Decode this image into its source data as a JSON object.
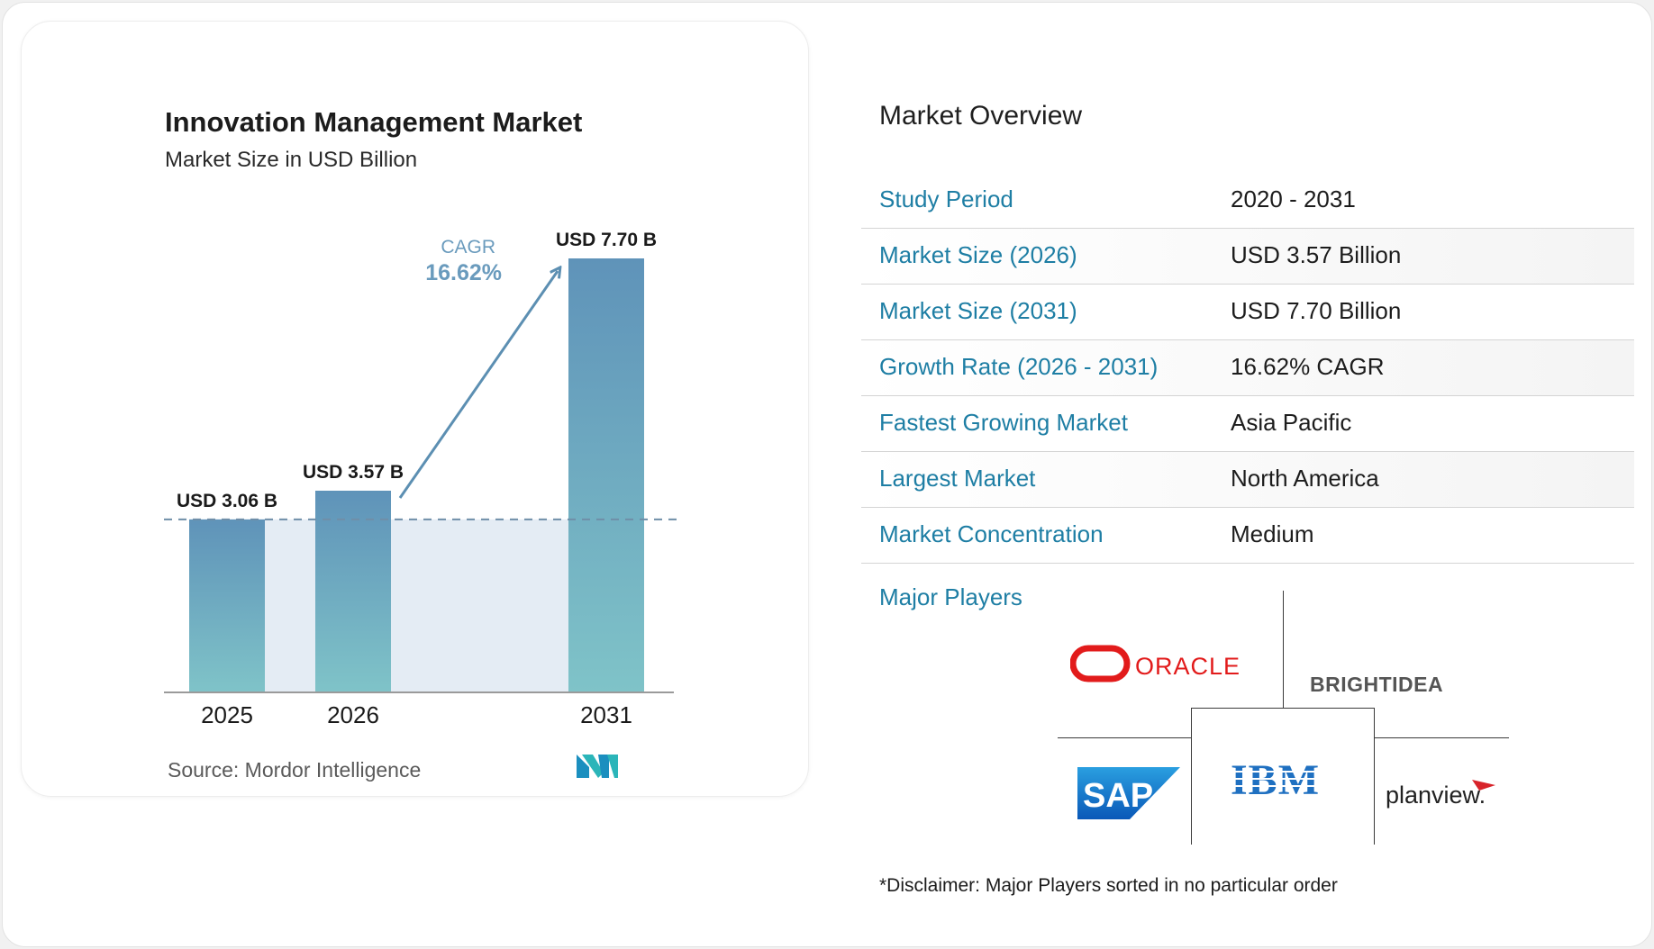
{
  "chart_data": {
    "type": "bar",
    "title": "Innovation Management Market",
    "subtitle": "Market Size in USD Billion",
    "categories": [
      "2025",
      "2026",
      "2031"
    ],
    "values": [
      3.06,
      3.57,
      7.7
    ],
    "data_labels": [
      "USD 3.06 B",
      "USD 3.57 B",
      "USD 7.70 B"
    ],
    "ylim": [
      0,
      7.7
    ],
    "cagr_label": "CAGR",
    "cagr_value": "16.62%",
    "reference_line_value": 3.06,
    "source": "Source: Mordor Intelligence",
    "colors": {
      "bar_top": "#5f93b9",
      "bar_bottom": "#7fc3c8",
      "band": "#e4ecf4",
      "arrow": "#5c8fb2",
      "cagr_text": "#6a9bbd"
    }
  },
  "overview": {
    "title": "Market Overview",
    "rows": [
      {
        "label": "Study Period",
        "value": "2020 - 2031"
      },
      {
        "label": "Market Size (2026)",
        "value": "USD 3.57 Billion"
      },
      {
        "label": "Market Size (2031)",
        "value": "USD 7.70 Billion"
      },
      {
        "label": "Growth Rate (2026 - 2031)",
        "value": "16.62% CAGR"
      },
      {
        "label": "Fastest Growing Market",
        "value": "Asia Pacific"
      },
      {
        "label": "Largest Market",
        "value": "North America"
      },
      {
        "label": "Market Concentration",
        "value": "Medium"
      }
    ]
  },
  "players": {
    "title": "Major Players",
    "logos": [
      "ORACLE",
      "BRIGHTIDEA",
      "SAP",
      "IBM",
      "planview."
    ],
    "disclaimer": "*Disclaimer: Major Players sorted in no particular order"
  }
}
